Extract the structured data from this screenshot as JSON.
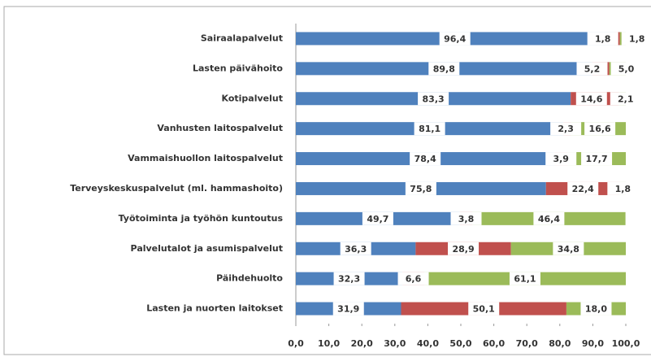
{
  "chart_data": {
    "type": "stacked-bar-horizontal",
    "categories": [
      "Sairaalapalvelut",
      "Lasten päivähoito",
      "Kotipalvelut",
      "Vanhusten laitospalvelut",
      "Vammaishuollon laitospalvelut",
      "Terveyskeskuspalvelut (ml. hammashoito)",
      "Työtoiminta ja työhön kuntoutus",
      "Palvelutalot ja asumispalvelut",
      "Päihdehuolto",
      "Lasten ja nuorten laitokset"
    ],
    "series": [
      {
        "color": "#4f81bd",
        "values": [
          96.4,
          89.8,
          83.3,
          81.1,
          78.4,
          75.8,
          49.7,
          36.3,
          32.3,
          31.9
        ],
        "value_labels": [
          "96,4",
          "89,8",
          "83,3",
          "81,1",
          "78,4",
          "75,8",
          "49,7",
          "36,3",
          "32,3",
          "31,9"
        ]
      },
      {
        "color": "#c0504d",
        "values": [
          1.8,
          5.2,
          14.6,
          2.3,
          3.9,
          22.4,
          3.8,
          28.9,
          6.6,
          50.1
        ],
        "value_labels": [
          "1,8",
          "5,2",
          "14,6",
          "2,3",
          "3,9",
          "22,4",
          "3,8",
          "28,9",
          "6,6",
          "50,1"
        ]
      },
      {
        "color": "#9bbb59",
        "values": [
          1.8,
          5.0,
          2.1,
          16.6,
          17.7,
          1.8,
          46.4,
          34.8,
          61.1,
          18.0
        ],
        "value_labels": [
          "1,8",
          "5,0",
          "2,1",
          "16,6",
          "17,7",
          "1,8",
          "46,4",
          "34,8",
          "61,1",
          "18,0"
        ]
      }
    ],
    "xlim": [
      0,
      100
    ],
    "xticks": [
      {
        "value": 0,
        "label": "0,0"
      },
      {
        "value": 10,
        "label": "10,0"
      },
      {
        "value": 20,
        "label": "20,0"
      },
      {
        "value": 30,
        "label": "30,0"
      },
      {
        "value": 40,
        "label": "40,0"
      },
      {
        "value": 50,
        "label": "50,0"
      },
      {
        "value": 60,
        "label": "60,0"
      },
      {
        "value": 70,
        "label": "70,0"
      },
      {
        "value": 80,
        "label": "80,0"
      },
      {
        "value": 90,
        "label": "90,0"
      },
      {
        "value": 100,
        "label": "100,0"
      }
    ]
  }
}
